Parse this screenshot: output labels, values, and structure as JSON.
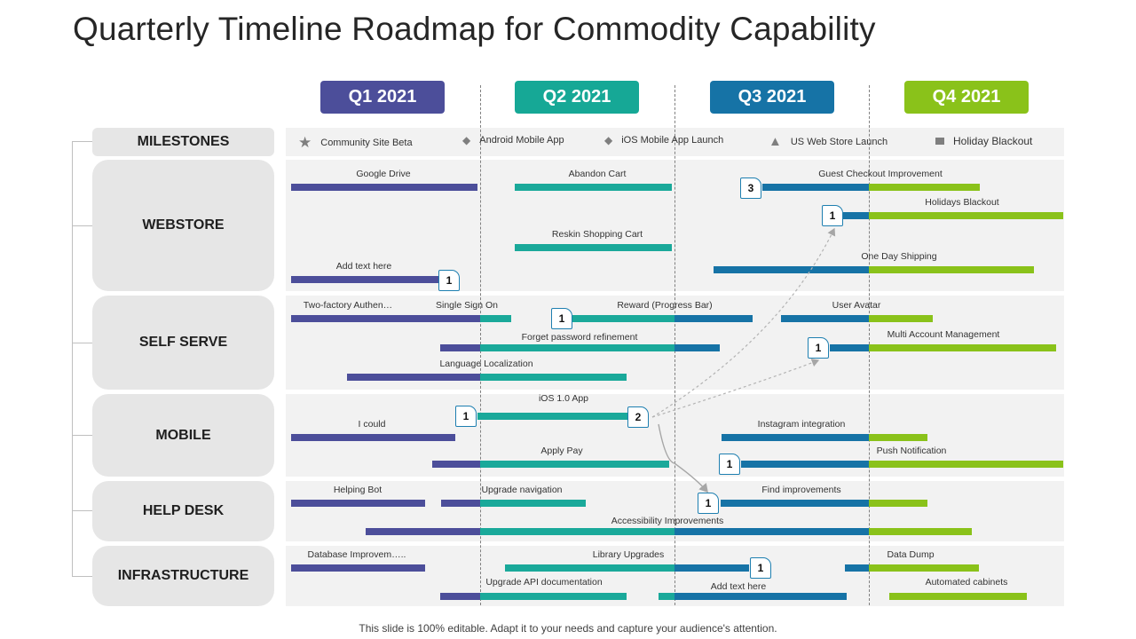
{
  "title": "Quarterly Timeline Roadmap for Commodity Capability",
  "footer": "This slide is 100% editable. Adapt it to your needs and capture your audience's attention.",
  "colors": {
    "q1": "#4c4e9a",
    "q2": "#16a896",
    "q3": "#1673a6",
    "q4": "#8ac21a",
    "bar_q1": "#4c4e9a",
    "bar_q2": "#1aa99a",
    "bar_q3": "#1673a6",
    "bar_q4": "#8ac21a"
  },
  "quarters": [
    {
      "label": "Q1 2021",
      "color": "#4c4e9a"
    },
    {
      "label": "Q2 2021",
      "color": "#16a896"
    },
    {
      "label": "Q3 2021",
      "color": "#1673a6"
    },
    {
      "label": "Q4 2021",
      "color": "#8ac21a"
    }
  ],
  "categories": {
    "milestones": "MILESTONES",
    "webstore": "WEBSTORE",
    "self_serve": "SELF SERVE",
    "mobile": "MOBILE",
    "help_desk": "HELP DESK",
    "infrastructure": "INFRASTRUCTURE"
  },
  "milestones": [
    {
      "icon": "star-icon",
      "label": "Community  Site Beta"
    },
    {
      "icon": "diamond-icon",
      "label": "Android Mobile App"
    },
    {
      "icon": "diamond-icon",
      "label": "iOS  Mobile  App Launch"
    },
    {
      "icon": "warning-icon",
      "label": "US Web Store Launch"
    },
    {
      "icon": "square-icon",
      "label": "Holiday Blackout"
    }
  ],
  "tasks": {
    "google_drive": "Google Drive",
    "abandon_cart": "Abandon Cart",
    "guest_checkout": "Guest Checkout Improvement",
    "holidays_blackout": "Holidays Blackout",
    "reskin_cart": "Reskin Shopping Cart",
    "one_day_shipping": "One Day Shipping",
    "add_text_here_1": "Add text here",
    "two_factory": "Two-factory Authen…",
    "single_sign_on": "Single Sign On",
    "reward_bar": "Reward (Progress Bar)",
    "user_avatar": "User Avatar",
    "forgot_password": "Forget password refinement",
    "multi_account": "Multi Account Management",
    "language_localization": "Language Localization",
    "ios_app": "iOS 1.0 App",
    "i_could": "I could",
    "instagram": "Instagram integration",
    "apply_pay": "Apply Pay",
    "push_notification": "Push Notification",
    "helping_bot": "Helping Bot",
    "upgrade_navigation": "Upgrade navigation",
    "find_improvements": "Find improvements",
    "accessibility": "Accessibility Improvements",
    "database_improvement": "Database Improvem…..",
    "library_upgrades": "Library Upgrades",
    "data_dump": "Data Dump",
    "upgrade_api_docs": "Upgrade API documentation",
    "add_text_here_2": "Add text here",
    "automated_cabinets": "Automated cabinets"
  },
  "badges": {
    "guest_checkout": "3",
    "holidays_blackout": "1",
    "add_text_here": "1",
    "reward_bar": "1",
    "multi_account": "1",
    "ios_start": "1",
    "ios_end": "2",
    "push_notification": "1",
    "find_improvements": "1",
    "library_upgrades": "1"
  }
}
